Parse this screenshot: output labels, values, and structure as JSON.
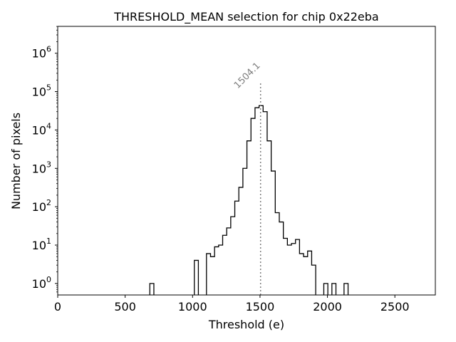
{
  "chart_data": {
    "type": "histogram",
    "title": "THRESHOLD_MEAN selection for chip 0x22eba",
    "xlabel": "Threshold (e)",
    "ylabel": "Number of pixels",
    "xlim": [
      0,
      2800
    ],
    "ylim_log10": [
      -0.3,
      6.7
    ],
    "yscale": "log",
    "x_ticks": [
      0,
      500,
      1000,
      1500,
      2000,
      2500
    ],
    "x_tick_labels": [
      "0",
      "500",
      "1000",
      "1500",
      "2000",
      "2500"
    ],
    "y_ticks_log10": [
      0,
      1,
      2,
      3,
      4,
      5,
      6
    ],
    "y_tick_labels": [
      {
        "base": "10",
        "exp": "0"
      },
      {
        "base": "10",
        "exp": "1"
      },
      {
        "base": "10",
        "exp": "2"
      },
      {
        "base": "10",
        "exp": "3"
      },
      {
        "base": "10",
        "exp": "4"
      },
      {
        "base": "10",
        "exp": "5"
      },
      {
        "base": "10",
        "exp": "6"
      }
    ],
    "bin_width": 30,
    "bins": [
      {
        "x0": 683,
        "count": 1
      },
      {
        "x0": 1013,
        "count": 4
      },
      {
        "x0": 1103,
        "count": 6
      },
      {
        "x0": 1133,
        "count": 5
      },
      {
        "x0": 1163,
        "count": 9
      },
      {
        "x0": 1193,
        "count": 10
      },
      {
        "x0": 1223,
        "count": 18
      },
      {
        "x0": 1253,
        "count": 28
      },
      {
        "x0": 1283,
        "count": 55
      },
      {
        "x0": 1313,
        "count": 140
      },
      {
        "x0": 1343,
        "count": 320
      },
      {
        "x0": 1373,
        "count": 1000
      },
      {
        "x0": 1403,
        "count": 5200
      },
      {
        "x0": 1433,
        "count": 20000
      },
      {
        "x0": 1463,
        "count": 38000
      },
      {
        "x0": 1493,
        "count": 43000
      },
      {
        "x0": 1523,
        "count": 30000
      },
      {
        "x0": 1553,
        "count": 5200
      },
      {
        "x0": 1583,
        "count": 850
      },
      {
        "x0": 1613,
        "count": 70
      },
      {
        "x0": 1643,
        "count": 40
      },
      {
        "x0": 1673,
        "count": 15
      },
      {
        "x0": 1703,
        "count": 10
      },
      {
        "x0": 1733,
        "count": 11
      },
      {
        "x0": 1763,
        "count": 14
      },
      {
        "x0": 1793,
        "count": 6
      },
      {
        "x0": 1823,
        "count": 5
      },
      {
        "x0": 1853,
        "count": 7
      },
      {
        "x0": 1883,
        "count": 3
      },
      {
        "x0": 1973,
        "count": 1
      },
      {
        "x0": 2033,
        "count": 1
      },
      {
        "x0": 2123,
        "count": 1
      }
    ],
    "annotation": {
      "x": 1504.1,
      "label": "1504.1",
      "top_value": 180000
    }
  }
}
